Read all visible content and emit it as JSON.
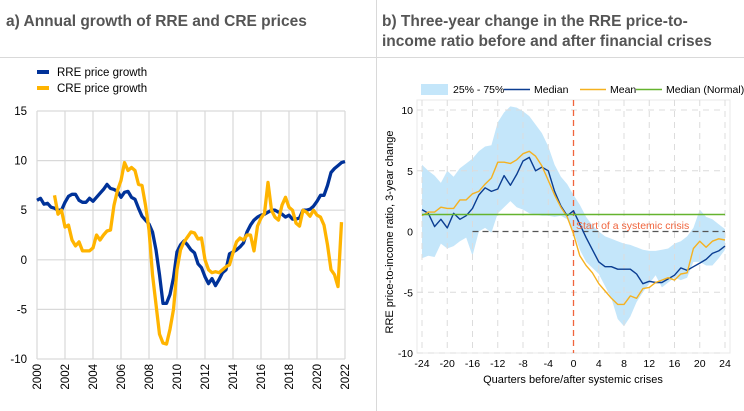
{
  "chart_data": [
    {
      "id": "a",
      "type": "line",
      "title": "a) Annual growth of RRE and CRE prices",
      "xlabel": "",
      "ylabel": "",
      "xlim": [
        2000,
        2022
      ],
      "ylim": [
        -10,
        15
      ],
      "x_ticks": [
        "2000",
        "2002",
        "2004",
        "2006",
        "2008",
        "2010",
        "2012",
        "2014",
        "2016",
        "2018",
        "2020",
        "2022"
      ],
      "y_ticks": [
        "15",
        "10",
        "5",
        "0",
        "-5",
        "-10"
      ],
      "grid": true,
      "legend_position": "top-left",
      "series": [
        {
          "name": "RRE price growth",
          "color": "#003299",
          "x": [
            2000,
            2000.25,
            2000.5,
            2000.75,
            2001,
            2001.25,
            2001.5,
            2001.75,
            2002,
            2002.25,
            2002.5,
            2002.75,
            2003,
            2003.25,
            2003.5,
            2003.75,
            2004,
            2004.25,
            2004.5,
            2004.75,
            2005,
            2005.25,
            2005.5,
            2005.75,
            2006,
            2006.25,
            2006.5,
            2006.75,
            2007,
            2007.25,
            2007.5,
            2007.75,
            2008,
            2008.25,
            2008.5,
            2008.75,
            2009,
            2009.25,
            2009.5,
            2009.75,
            2010,
            2010.25,
            2010.5,
            2010.75,
            2011,
            2011.25,
            2011.5,
            2011.75,
            2012,
            2012.25,
            2012.5,
            2012.75,
            2013,
            2013.25,
            2013.5,
            2013.75,
            2014,
            2014.25,
            2014.5,
            2014.75,
            2015,
            2015.25,
            2015.5,
            2015.75,
            2016,
            2016.25,
            2016.5,
            2016.75,
            2017,
            2017.25,
            2017.5,
            2017.75,
            2018,
            2018.25,
            2018.5,
            2018.75,
            2019,
            2019.25,
            2019.5,
            2019.75,
            2020,
            2020.25,
            2020.5,
            2020.75,
            2021,
            2021.25,
            2021.5,
            2021.75,
            2022
          ],
          "values": [
            6.0,
            6.2,
            5.6,
            5.7,
            5.3,
            5.2,
            5.0,
            5.0,
            5.8,
            6.4,
            6.6,
            6.6,
            6.0,
            5.8,
            5.8,
            6.2,
            5.9,
            6.3,
            6.7,
            7.1,
            7.6,
            7.2,
            7.1,
            6.9,
            6.3,
            6.8,
            6.9,
            6.3,
            6.1,
            5.2,
            4.4,
            4.0,
            3.6,
            2.8,
            1.0,
            -1.5,
            -4.4,
            -4.4,
            -3.5,
            -1.8,
            0.8,
            1.5,
            1.9,
            1.5,
            1.0,
            0.7,
            -0.4,
            -0.8,
            -1.7,
            -2.4,
            -1.9,
            -2.6,
            -2.0,
            -1.3,
            -1.0,
            0.6,
            0.8,
            1.0,
            1.3,
            1.7,
            2.8,
            3.5,
            4.0,
            4.3,
            4.5,
            4.6,
            4.8,
            5.0,
            5.0,
            4.8,
            4.6,
            4.3,
            4.5,
            4.1,
            4.1,
            4.2,
            5.0,
            5.0,
            5.1,
            5.4,
            5.9,
            6.5,
            6.5,
            7.5,
            8.8,
            9.2,
            9.5,
            9.8,
            9.9
          ],
          "note": "visual estimate"
        },
        {
          "name": "CRE price growth",
          "color": "#ffb400",
          "x": [
            2001.25,
            2001.5,
            2001.75,
            2002,
            2002.25,
            2002.5,
            2002.75,
            2003,
            2003.25,
            2003.5,
            2003.75,
            2004,
            2004.25,
            2004.5,
            2004.75,
            2005,
            2005.25,
            2005.5,
            2005.75,
            2006,
            2006.25,
            2006.5,
            2006.75,
            2007,
            2007.25,
            2007.5,
            2007.75,
            2008,
            2008.25,
            2008.5,
            2008.75,
            2009,
            2009.25,
            2009.5,
            2009.75,
            2010,
            2010.25,
            2010.5,
            2010.75,
            2011,
            2011.25,
            2011.5,
            2011.75,
            2012,
            2012.25,
            2012.5,
            2012.75,
            2013,
            2013.25,
            2013.5,
            2013.75,
            2014,
            2014.25,
            2014.5,
            2014.75,
            2015,
            2015.25,
            2015.5,
            2015.75,
            2016,
            2016.25,
            2016.5,
            2016.75,
            2017,
            2017.25,
            2017.5,
            2017.75,
            2018,
            2018.25,
            2018.5,
            2018.75,
            2019,
            2019.25,
            2019.5,
            2019.75,
            2020,
            2020.25,
            2020.5,
            2020.75,
            2021,
            2021.25,
            2021.5,
            2021.75
          ],
          "values": [
            6.5,
            4.6,
            5.0,
            3.3,
            3.5,
            2.0,
            1.4,
            1.8,
            0.9,
            0.9,
            0.9,
            1.2,
            2.5,
            2.0,
            2.5,
            2.9,
            3.0,
            5.5,
            7.0,
            8.0,
            9.8,
            9.0,
            9.3,
            9.0,
            7.6,
            7.5,
            5.5,
            3.0,
            -1.5,
            -4.5,
            -7.5,
            -8.4,
            -8.5,
            -7.0,
            -5.0,
            -1.0,
            1.0,
            1.8,
            2.3,
            2.8,
            2.7,
            2.1,
            2.2,
            0.0,
            -1.0,
            -1.3,
            -1.2,
            -1.3,
            -1.0,
            -0.7,
            -0.5,
            0.7,
            1.8,
            2.2,
            2.0,
            2.5,
            2.5,
            0.9,
            3.4,
            4.2,
            4.7,
            7.8,
            5.0,
            4.3,
            4.0,
            5.5,
            6.3,
            5.3,
            5.0,
            3.7,
            3.4,
            5.0,
            4.8,
            4.4,
            5.0,
            4.5,
            4.3,
            3.5,
            1.5,
            -1.0,
            -1.5,
            -2.7,
            3.8
          ],
          "note": "visual estimate"
        }
      ]
    },
    {
      "id": "b",
      "type": "line",
      "title": "b) Three-year change in the RRE price-to-income ratio before and after financial crises",
      "xlabel": "Quarters before/after systemic crises",
      "ylabel": "RRE price-to-income ratio, 3-year change",
      "xlim": [
        -24,
        24
      ],
      "ylim": [
        -10,
        10
      ],
      "x_ticks": [
        "-24",
        "-20",
        "-16",
        "-12",
        "-8",
        "-4",
        "0",
        "4",
        "8",
        "12",
        "16",
        "20",
        "24"
      ],
      "y_ticks": [
        "10",
        "5",
        "0",
        "-5",
        "-10"
      ],
      "grid": true,
      "grid_style": "dashed",
      "legend_position": "top",
      "annotation": "Start of a systemic crisis",
      "annotation_x": 0,
      "x": [
        -24,
        -23,
        -22,
        -21,
        -20,
        -19,
        -18,
        -17,
        -16,
        -15,
        -14,
        -13,
        -12,
        -11,
        -10,
        -9,
        -8,
        -7,
        -6,
        -5,
        -4,
        -3,
        -2,
        -1,
        0,
        1,
        2,
        3,
        4,
        5,
        6,
        7,
        8,
        9,
        10,
        11,
        12,
        13,
        14,
        15,
        16,
        17,
        18,
        19,
        20,
        21,
        22,
        23,
        24
      ],
      "band": {
        "name": "25% - 75%",
        "color": "#c4e6fa",
        "upper": [
          5.5,
          5.0,
          4.6,
          4.0,
          5.0,
          4.5,
          5.2,
          5.6,
          6.0,
          6.6,
          7.0,
          7.1,
          9.0,
          9.8,
          10.3,
          10.2,
          9.9,
          9.5,
          8.8,
          8.1,
          7.0,
          5.5,
          4.5,
          3.9,
          3.0,
          2.2,
          1.2,
          0.5,
          0.0,
          -0.4,
          -0.6,
          -0.8,
          -1.0,
          -1.1,
          -1.3,
          -1.5,
          -1.6,
          -1.6,
          -1.5,
          -1.4,
          -1.0,
          -0.8,
          -0.4,
          0.3,
          1.8,
          1.2,
          1.0,
          0.6,
          0.2
        ],
        "lower": [
          -2.2,
          -2.0,
          -2.1,
          -1.0,
          -1.4,
          -1.2,
          -0.8,
          -0.5,
          -2.0,
          0.0,
          0.3,
          -0.1,
          1.5,
          2.0,
          2.5,
          2.0,
          1.8,
          1.5,
          1.4,
          1.3,
          1.3,
          1.2,
          1.3,
          1.0,
          0.0,
          -1.5,
          -2.5,
          -3.0,
          -3.5,
          -4.5,
          -5.5,
          -7.2,
          -7.8,
          -7.0,
          -5.8,
          -5.0,
          -4.3,
          -3.6,
          -4.6,
          -4.2,
          -3.8,
          -4.0,
          -3.8,
          -2.5,
          -2.5,
          -2.8,
          -2.8,
          -2.2,
          -1.5
        ]
      },
      "series": [
        {
          "name": "Median",
          "color": "#0b3d91",
          "values": [
            1.8,
            1.5,
            0.4,
            1.0,
            0.3,
            1.5,
            1.0,
            1.3,
            1.9,
            3.0,
            3.6,
            3.3,
            3.5,
            4.6,
            3.8,
            4.7,
            5.8,
            6.1,
            5.0,
            5.3,
            5.0,
            3.3,
            2.1,
            1.3,
            1.7,
            0.6,
            -0.5,
            -1.5,
            -2.5,
            -2.9,
            -2.9,
            -3.1,
            -3.1,
            -3.1,
            -3.5,
            -4.3,
            -4.1,
            -4.2,
            -4.2,
            -3.9,
            -3.6,
            -3.0,
            -3.2,
            -2.9,
            -2.6,
            -2.3,
            -1.8,
            -1.6,
            -1.2
          ]
        },
        {
          "name": "Mean",
          "color": "#f5b120",
          "values": [
            1.3,
            1.6,
            1.6,
            2.0,
            1.9,
            1.9,
            2.6,
            2.6,
            3.1,
            3.3,
            3.9,
            4.4,
            5.7,
            5.7,
            5.6,
            5.9,
            6.4,
            6.6,
            6.2,
            5.4,
            4.2,
            3.0,
            2.0,
            1.2,
            -0.2,
            -2.0,
            -2.8,
            -3.4,
            -4.3,
            -4.9,
            -5.5,
            -6.0,
            -6.0,
            -5.3,
            -5.5,
            -4.7,
            -4.6,
            -4.2,
            -4.0,
            -3.8,
            -4.0,
            -3.5,
            -3.4,
            -1.4,
            -0.8,
            -1.3,
            -0.8,
            -0.6,
            -0.7
          ]
        },
        {
          "name": "Median (Normal)",
          "color": "#65b32e",
          "values_constant": 1.4
        }
      ],
      "note": "visual estimate"
    }
  ]
}
